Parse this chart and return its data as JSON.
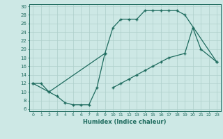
{
  "xlabel": "Humidex (Indice chaleur)",
  "bg_color": "#cde8e5",
  "line_color": "#1e6b5e",
  "grid_color": "#aecfcb",
  "xlim": [
    -0.5,
    23.5
  ],
  "ylim": [
    5.5,
    30.5
  ],
  "xticks": [
    0,
    1,
    2,
    3,
    4,
    5,
    6,
    7,
    8,
    9,
    10,
    11,
    12,
    13,
    14,
    15,
    16,
    17,
    18,
    19,
    20,
    21,
    22,
    23
  ],
  "yticks": [
    6,
    8,
    10,
    12,
    14,
    16,
    18,
    20,
    22,
    24,
    26,
    28,
    30
  ],
  "curves": [
    {
      "x": [
        0,
        1,
        2,
        3,
        4,
        5,
        6,
        7,
        8,
        9
      ],
      "y": [
        12,
        12,
        10,
        9,
        7.5,
        7,
        7,
        7,
        11,
        19
      ]
    },
    {
      "x": [
        0,
        2,
        9,
        10,
        11,
        12,
        13,
        14,
        15,
        16,
        17,
        18,
        19,
        23
      ],
      "y": [
        12,
        10,
        19,
        25,
        27,
        27,
        27,
        29,
        29,
        29,
        29,
        29,
        28,
        17
      ]
    },
    {
      "x": [
        10,
        11,
        12,
        13,
        14,
        15,
        16,
        17,
        19,
        20,
        21,
        23
      ],
      "y": [
        11,
        12,
        13,
        14,
        15,
        16,
        17,
        18,
        19,
        25,
        20,
        17
      ]
    }
  ]
}
